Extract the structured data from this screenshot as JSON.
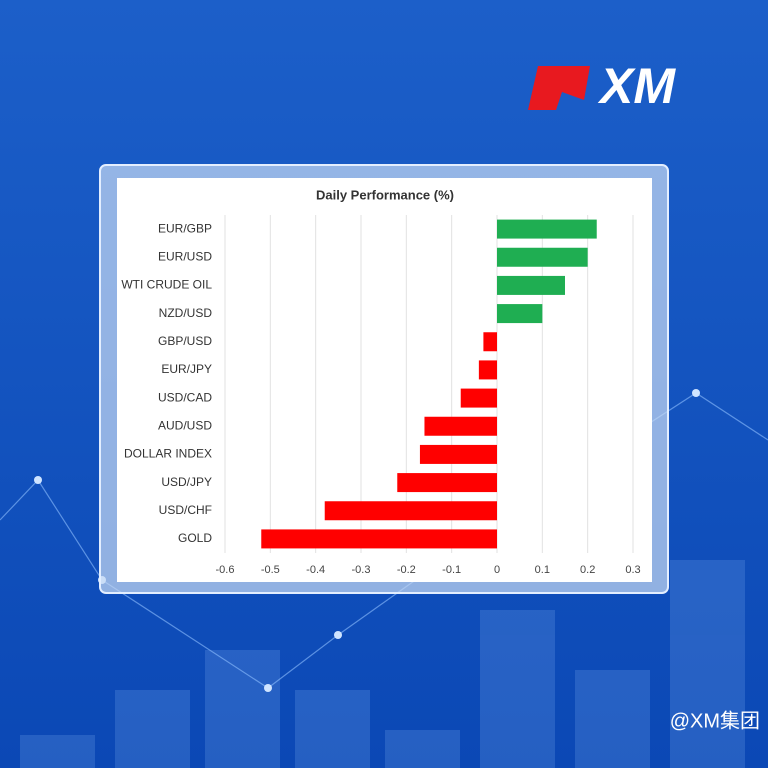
{
  "branding": {
    "logo": "XM",
    "watermark": "@XM集团"
  },
  "chart_data": {
    "type": "bar",
    "orientation": "horizontal",
    "title": "Daily Performance (%)",
    "categories": [
      "EUR/GBP",
      "EUR/USD",
      "WTI CRUDE OIL",
      "NZD/USD",
      "GBP/USD",
      "EUR/JPY",
      "USD/CAD",
      "AUD/USD",
      "DOLLAR INDEX",
      "USD/JPY",
      "USD/CHF",
      "GOLD"
    ],
    "values": [
      0.22,
      0.2,
      0.15,
      0.1,
      -0.03,
      -0.04,
      -0.08,
      -0.16,
      -0.17,
      -0.22,
      -0.38,
      -0.52
    ],
    "positive_color": "#1fae52",
    "negative_color": "#ff0000",
    "xlim": [
      -0.6,
      0.3
    ],
    "xticks": [
      -0.6,
      -0.5,
      -0.4,
      -0.3,
      -0.2,
      -0.1,
      0,
      0.1,
      0.2,
      0.3
    ],
    "grid": true
  }
}
